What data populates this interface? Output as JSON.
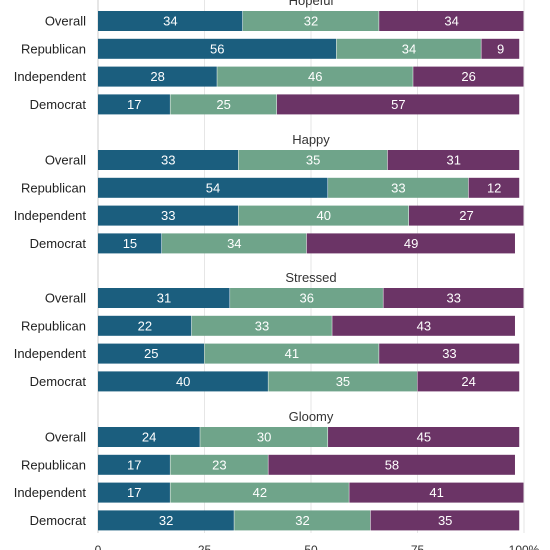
{
  "chart_data": {
    "type": "bar",
    "orientation": "horizontal",
    "stacked": true,
    "colors": [
      "#1b5e7e",
      "#6fa48a",
      "#6b3466"
    ],
    "xlim": [
      0,
      100
    ],
    "x_ticks": [
      "0",
      "25",
      "50",
      "75",
      "100%"
    ],
    "grid": true,
    "panels": [
      {
        "title": "Hopeful",
        "categories": [
          "Overall",
          "Republican",
          "Independent",
          "Democrat"
        ],
        "values": [
          [
            34,
            32,
            34
          ],
          [
            56,
            34,
            9
          ],
          [
            28,
            46,
            26
          ],
          [
            17,
            25,
            57
          ]
        ]
      },
      {
        "title": "Happy",
        "categories": [
          "Overall",
          "Republican",
          "Independent",
          "Democrat"
        ],
        "values": [
          [
            33,
            35,
            31
          ],
          [
            54,
            33,
            12
          ],
          [
            33,
            40,
            27
          ],
          [
            15,
            34,
            49
          ]
        ]
      },
      {
        "title": "Stressed",
        "categories": [
          "Overall",
          "Republican",
          "Independent",
          "Democrat"
        ],
        "values": [
          [
            31,
            36,
            33
          ],
          [
            22,
            33,
            43
          ],
          [
            25,
            41,
            33
          ],
          [
            40,
            35,
            24
          ]
        ]
      },
      {
        "title": "Gloomy",
        "categories": [
          "Overall",
          "Republican",
          "Independent",
          "Democrat"
        ],
        "values": [
          [
            24,
            30,
            45
          ],
          [
            17,
            23,
            58
          ],
          [
            17,
            42,
            41
          ],
          [
            32,
            32,
            35
          ]
        ]
      }
    ]
  }
}
